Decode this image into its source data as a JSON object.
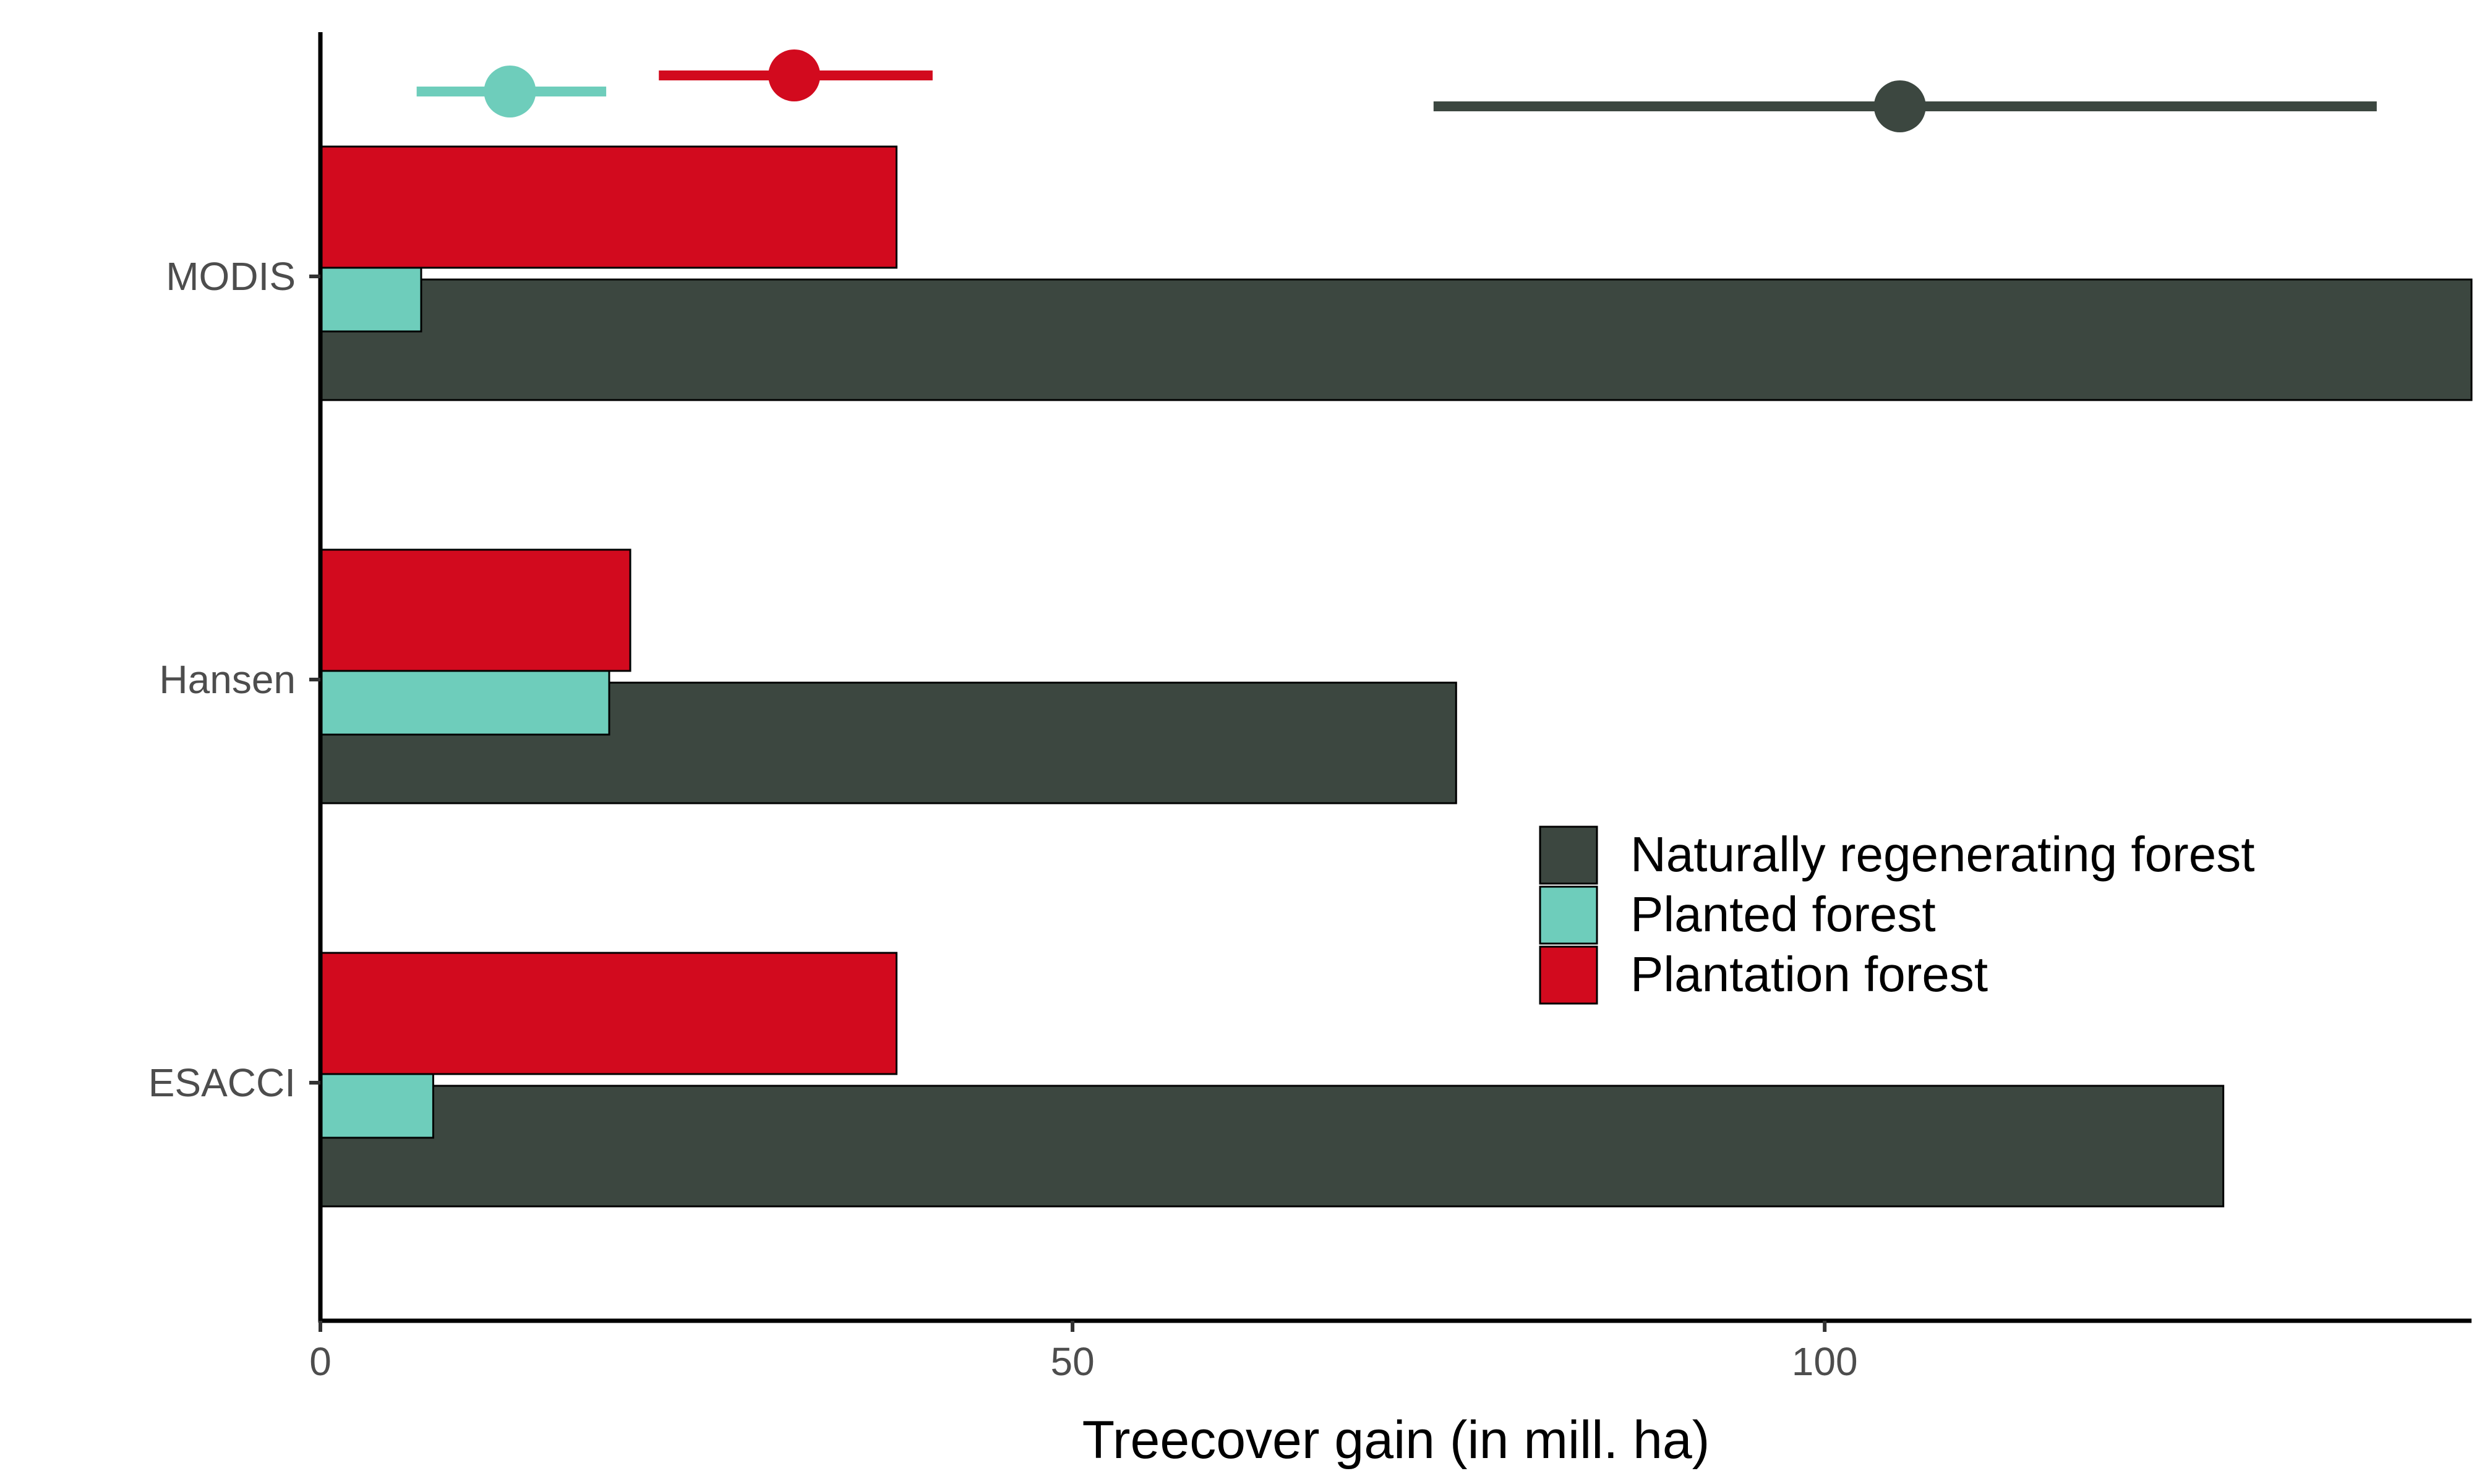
{
  "chart_data": {
    "type": "bar",
    "orientation": "horizontal",
    "categories": [
      "ESACCI",
      "Hansen",
      "MODIS"
    ],
    "series": [
      {
        "name": "Naturally regenerating forest",
        "color": "#3c4740",
        "values": [
          126.5,
          75.5,
          143.0
        ]
      },
      {
        "name": "Planted forest",
        "color": "#6ecdbb",
        "values": [
          7.5,
          19.2,
          6.7
        ]
      },
      {
        "name": "Plantation forest",
        "color": "#d20a1e",
        "values": [
          38.3,
          20.6,
          38.3
        ]
      }
    ],
    "reference_intervals": [
      {
        "series": "Planted forest",
        "color": "#6ecdbb",
        "point": 12.6,
        "low": 6.4,
        "high": 19.0
      },
      {
        "series": "Plantation forest",
        "color": "#d20a1e",
        "point": 31.5,
        "low": 22.5,
        "high": 40.7
      },
      {
        "series": "Naturally regenerating forest",
        "color": "#3c4740",
        "point": 105.0,
        "low": 74.0,
        "high": 136.7
      }
    ],
    "xlabel": "Treecover gain (in mill. ha)",
    "ylabel": "",
    "xlim": [
      0,
      143
    ],
    "xticks": [
      0,
      50,
      100
    ],
    "grid": false,
    "legend_position": "right-center"
  }
}
